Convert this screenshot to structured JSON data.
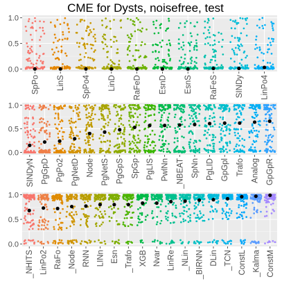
{
  "chart_data": {
    "type": "scatter",
    "title": "CME  for  Dysts, noisefree, test",
    "description_note": "",
    "y_ticks": [
      0.0,
      0.5,
      1.0
    ],
    "ylim": [
      -0.05,
      1.05
    ],
    "panels": [
      {
        "categories": [
          "SpPo",
          "LinS",
          "SpPo4",
          "LinD",
          "RaFeD",
          "EsnD",
          "EsnS",
          "RaFeS",
          "SINDy",
          "LinPo4"
        ],
        "medians": [
          0.0,
          0.0,
          0.0,
          0.0,
          0.0,
          0.0,
          0.0,
          0.01,
          0.01,
          0.03
        ],
        "colors": [
          "#F8766D",
          "#E58700",
          "#C99800",
          "#A3A500",
          "#6BB100",
          "#00BA38",
          "#00BF7D",
          "#00C0AF",
          "#00BCD8",
          "#00B0F6"
        ]
      },
      {
        "categories": [
          "SINDyN",
          "PgGpD",
          "PgPo2",
          "PgNetD",
          "Node",
          "PgNetS",
          "PgGpS",
          "SpGp",
          "PgLIS",
          "PwlNn",
          "_NBEAT",
          "SpNn",
          "PgLID",
          "GpGpl",
          "Trafo",
          "Analog",
          "GpGpR"
        ],
        "medians": [
          0.15,
          0.22,
          0.24,
          0.29,
          0.4,
          0.43,
          0.48,
          0.53,
          0.57,
          0.57,
          0.58,
          0.59,
          0.61,
          0.62,
          0.62,
          0.64,
          0.66
        ],
        "colors": [
          "#F8766D",
          "#EF7F49",
          "#E38900",
          "#D39200",
          "#C09B00",
          "#A9A400",
          "#8EAB00",
          "#6BB100",
          "#39B600",
          "#00BA4A",
          "#00BE70",
          "#00C094",
          "#00C1B2",
          "#00BECD",
          "#00B8E3",
          "#00ADF4",
          "#2DA2FF"
        ]
      },
      {
        "categories": [
          "_NHITS",
          "LinPo2",
          "RaFo",
          "_Node",
          "RNN",
          "LINn",
          "Esn",
          "_Trafo",
          "XGB",
          "Nvar",
          "LinRe",
          "_NLin",
          "_BIRNN",
          "DLin",
          "_TCN",
          "ConstL",
          "_Kalma",
          "ConstM"
        ],
        "medians": [
          0.68,
          0.73,
          0.72,
          0.76,
          0.77,
          0.8,
          0.8,
          0.8,
          0.83,
          0.83,
          0.86,
          0.87,
          0.89,
          0.9,
          0.92,
          0.96,
          0.97,
          0.99
        ],
        "colors": [
          "#F8766D",
          "#EE8044",
          "#E08B00",
          "#CF9400",
          "#BA9E00",
          "#A0A600",
          "#7EAE00",
          "#4CB400",
          "#00BA46",
          "#00BE6C",
          "#00C08F",
          "#00C1AB",
          "#00BFC4",
          "#00BAD9",
          "#00B2EB",
          "#00A6FA",
          "#5B9CFF",
          "#A58AFF"
        ]
      }
    ]
  }
}
